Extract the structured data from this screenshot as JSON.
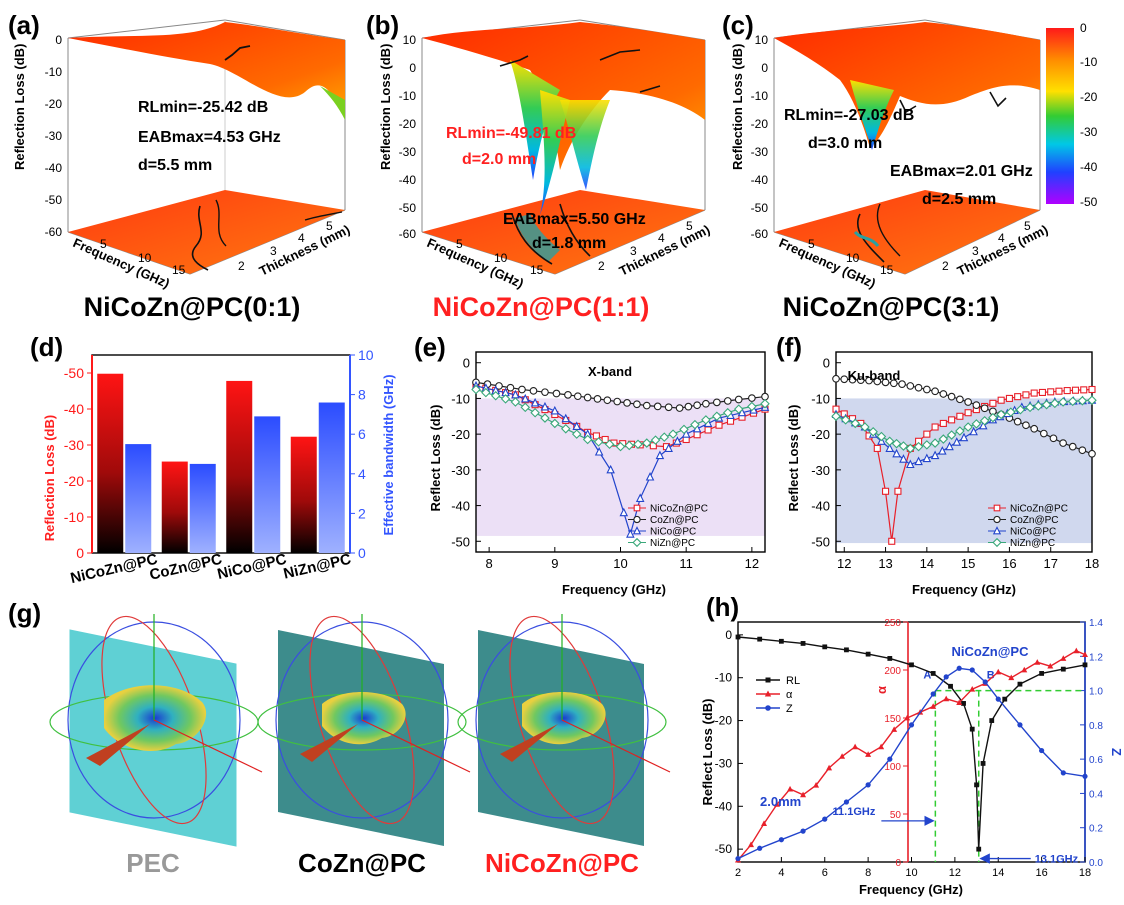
{
  "panel_letters": [
    "(a)",
    "(b)",
    "(c)",
    "(d)",
    "(e)",
    "(f)",
    "(g)",
    "(h)"
  ],
  "colorbar": {
    "ticks": [
      "0",
      "-10",
      "-20",
      "-30",
      "-40",
      "-50"
    ]
  },
  "surfaces": [
    {
      "caption": "NiCoZn@PC(0:1)",
      "caption_color": "#000000",
      "zlabel": "Reflection Loss (dB)",
      "xlabel": "Frequency (GHz)",
      "ylabel": "Thickness (mm)",
      "zticks": [
        "0",
        "-10",
        "-20",
        "-30",
        "-40",
        "-50",
        "-60"
      ],
      "xticks": [
        "5",
        "10",
        "15"
      ],
      "yticks": [
        "2",
        "3",
        "4",
        "5"
      ],
      "ann": [
        {
          "text": "RLmin=-25.42 dB",
          "color": "#000000"
        },
        {
          "text": "EABmax=4.53 GHz",
          "color": "#000000"
        },
        {
          "text": "d=5.5 mm",
          "color": "#000000"
        }
      ]
    },
    {
      "caption": "NiCoZn@PC(1:1)",
      "caption_color": "#ff2020",
      "zlabel": "Reflection Loss (dB)",
      "xlabel": "Frequency (GHz)",
      "ylabel": "Thickness (mm)",
      "zticks": [
        "10",
        "0",
        "-10",
        "-20",
        "-30",
        "-40",
        "-50",
        "-60"
      ],
      "xticks": [
        "5",
        "10",
        "15"
      ],
      "yticks": [
        "2",
        "3",
        "4",
        "5"
      ],
      "ann": [
        {
          "text": "RLmin=-49.81 dB",
          "color": "#ff2020"
        },
        {
          "text": "d=2.0 mm",
          "color": "#ff2020"
        },
        {
          "text": "EABmax=5.50 GHz",
          "color": "#000000"
        },
        {
          "text": "d=1.8 mm",
          "color": "#000000"
        }
      ]
    },
    {
      "caption": "NiCoZn@PC(3:1)",
      "caption_color": "#000000",
      "zlabel": "Reflection Loss (dB)",
      "xlabel": "Frequency (GHz)",
      "ylabel": "Thickness (mm)",
      "zticks": [
        "10",
        "0",
        "-10",
        "-20",
        "-30",
        "-40",
        "-50",
        "-60"
      ],
      "xticks": [
        "5",
        "10",
        "15"
      ],
      "yticks": [
        "2",
        "3",
        "4",
        "5"
      ],
      "ann": [
        {
          "text": "RLmin=-27.03 dB",
          "color": "#000000"
        },
        {
          "text": "d=3.0 mm",
          "color": "#000000"
        },
        {
          "text": "EABmax=2.01 GHz",
          "color": "#000000"
        },
        {
          "text": "d=2.5 mm",
          "color": "#000000"
        }
      ]
    }
  ],
  "g_panel": {
    "labels": [
      {
        "text": "PEC",
        "color": "#999999"
      },
      {
        "text": "CoZn@PC",
        "color": "#000000"
      },
      {
        "text": "NiCoZn@PC",
        "color": "#ff2020"
      }
    ]
  },
  "chart_data": [
    {
      "id": "d",
      "type": "bar",
      "categories": [
        "NiCoZn@PC",
        "CoZn@PC",
        "NiCo@PC",
        "NiZn@PC"
      ],
      "series": [
        {
          "name": "Reflection Loss (dB)",
          "values": [
            -49.8,
            -25.4,
            -47.8,
            -32.3
          ],
          "color": "#ff1a1a"
        },
        {
          "name": "Effective bandwidth (GHz)",
          "values": [
            5.5,
            4.5,
            6.9,
            7.6
          ],
          "color": "#3355ff"
        }
      ],
      "ylabel": "Reflection Loss (dB)",
      "y2label": "Effective bandwidth (GHz)",
      "ylim": [
        0,
        -55
      ],
      "y2lim": [
        0,
        10
      ],
      "yticks": [
        "-50",
        "-40",
        "-30",
        "-20",
        "-10",
        "0"
      ],
      "y2ticks": [
        "0",
        "2",
        "4",
        "6",
        "8",
        "10"
      ]
    },
    {
      "id": "e",
      "type": "line",
      "title": "X-band",
      "xlabel": "Frequency (GHz)",
      "ylabel": "Reflect Loss (dB)",
      "xlim": [
        7.8,
        12.2
      ],
      "ylim": [
        -53,
        3
      ],
      "xticks": [
        "8",
        "9",
        "10",
        "11",
        "12"
      ],
      "yticks": [
        "0",
        "-10",
        "-20",
        "-30",
        "-40",
        "-50"
      ],
      "band": [
        -48.5,
        -10
      ],
      "series": [
        {
          "name": "NiCoZn@PC",
          "color": "#e8202a",
          "marker": "square",
          "points": [
            [
              7.8,
              -6.5
            ],
            [
              8.4,
              -9
            ],
            [
              9,
              -14.5
            ],
            [
              9.5,
              -19.5
            ],
            [
              9.9,
              -22.5
            ],
            [
              10.3,
              -23
            ],
            [
              10.7,
              -23.5
            ],
            [
              11,
              -21.5
            ],
            [
              11.5,
              -17.5
            ],
            [
              12.2,
              -13
            ]
          ]
        },
        {
          "name": "CoZn@PC",
          "color": "#222222",
          "marker": "circle",
          "points": [
            [
              7.8,
              -5.5
            ],
            [
              8.5,
              -7.5
            ],
            [
              9.2,
              -9
            ],
            [
              9.8,
              -10.5
            ],
            [
              10.4,
              -12
            ],
            [
              10.9,
              -12.7
            ],
            [
              11.3,
              -11.5
            ],
            [
              11.8,
              -10.3
            ],
            [
              12.2,
              -9.5
            ]
          ]
        },
        {
          "name": "NiCo@PC",
          "color": "#2244cc",
          "marker": "triangle",
          "points": [
            [
              7.8,
              -6.5
            ],
            [
              8.4,
              -9
            ],
            [
              9,
              -13.5
            ],
            [
              9.5,
              -20
            ],
            [
              9.85,
              -30
            ],
            [
              10.05,
              -42
            ],
            [
              10.15,
              -48
            ],
            [
              10.3,
              -38
            ],
            [
              10.6,
              -26
            ],
            [
              11,
              -20
            ],
            [
              11.5,
              -15.5
            ],
            [
              12.2,
              -12.5
            ]
          ]
        },
        {
          "name": "NiZn@PC",
          "color": "#3aa87a",
          "marker": "diamond",
          "points": [
            [
              7.8,
              -7.5
            ],
            [
              8.4,
              -11
            ],
            [
              9,
              -17
            ],
            [
              9.5,
              -21.5
            ],
            [
              10,
              -23.5
            ],
            [
              10.4,
              -22.5
            ],
            [
              10.8,
              -20
            ],
            [
              11.3,
              -16
            ],
            [
              11.8,
              -13
            ],
            [
              12.2,
              -11.5
            ]
          ]
        }
      ]
    },
    {
      "id": "f",
      "type": "line",
      "title": "Ku-band",
      "xlabel": "Frequency (GHz)",
      "ylabel": "Reflect Loss (dB)",
      "xlim": [
        11.8,
        18
      ],
      "ylim": [
        -53,
        3
      ],
      "xticks": [
        "12",
        "13",
        "14",
        "15",
        "16",
        "17",
        "18"
      ],
      "yticks": [
        "0",
        "-10",
        "-20",
        "-30",
        "-40",
        "-50"
      ],
      "band": [
        -50.5,
        -10
      ],
      "series": [
        {
          "name": "NiCoZn@PC",
          "color": "#e8202a",
          "marker": "square",
          "points": [
            [
              11.8,
              -13
            ],
            [
              12.4,
              -17
            ],
            [
              12.8,
              -24
            ],
            [
              13,
              -36
            ],
            [
              13.15,
              -50
            ],
            [
              13.3,
              -36
            ],
            [
              13.6,
              -24
            ],
            [
              14.2,
              -18
            ],
            [
              15,
              -14
            ],
            [
              15.8,
              -10.5
            ],
            [
              16.6,
              -8.5
            ],
            [
              17.4,
              -7.8
            ],
            [
              18,
              -7.5
            ]
          ]
        },
        {
          "name": "CoZn@PC",
          "color": "#222222",
          "marker": "circle",
          "points": [
            [
              11.8,
              -4.5
            ],
            [
              12.6,
              -5
            ],
            [
              13.4,
              -6
            ],
            [
              14.2,
              -8
            ],
            [
              15,
              -11
            ],
            [
              15.8,
              -14.5
            ],
            [
              16.6,
              -18.5
            ],
            [
              17.3,
              -22.5
            ],
            [
              18,
              -25.5
            ]
          ]
        },
        {
          "name": "NiCo@PC",
          "color": "#2244cc",
          "marker": "triangle",
          "points": [
            [
              11.8,
              -14.5
            ],
            [
              12.5,
              -18
            ],
            [
              13.1,
              -24
            ],
            [
              13.6,
              -28.5
            ],
            [
              14.2,
              -26
            ],
            [
              14.9,
              -21
            ],
            [
              15.6,
              -16
            ],
            [
              16.3,
              -12.5
            ],
            [
              17.1,
              -11
            ],
            [
              18,
              -10.5
            ]
          ]
        },
        {
          "name": "NiZn@PC",
          "color": "#3aa87a",
          "marker": "diamond",
          "points": [
            [
              11.8,
              -15
            ],
            [
              12.5,
              -18
            ],
            [
              13.1,
              -22
            ],
            [
              13.6,
              -24
            ],
            [
              14.2,
              -22.5
            ],
            [
              15,
              -18
            ],
            [
              15.8,
              -14.5
            ],
            [
              16.5,
              -12.5
            ],
            [
              17.3,
              -11
            ],
            [
              18,
              -10.5
            ]
          ]
        }
      ]
    },
    {
      "id": "h",
      "type": "line",
      "title": "NiCoZn@PC",
      "xlabel": "Frequency (GHz)",
      "ylabel": "Reflect Loss (dB)",
      "y2label": "α",
      "y3label": "Z",
      "xlim": [
        2,
        18
      ],
      "ylim": [
        -53,
        3
      ],
      "y2lim": [
        0,
        250
      ],
      "y3lim": [
        0,
        1.4
      ],
      "xticks": [
        "2",
        "4",
        "6",
        "8",
        "10",
        "12",
        "14",
        "16",
        "18"
      ],
      "yticks": [
        "0",
        "-10",
        "-20",
        "-30",
        "-40",
        "-50"
      ],
      "y2ticks": [
        "0",
        "50",
        "100",
        "150",
        "200",
        "250"
      ],
      "y3ticks": [
        "0.0",
        "0.2",
        "0.4",
        "0.6",
        "0.8",
        "1.0",
        "1.2",
        "1.4"
      ],
      "thickness": "2.0mm",
      "marks": [
        {
          "label": "A",
          "x": 11.1
        },
        {
          "label": "B",
          "x": 13.1
        }
      ],
      "arrows": [
        {
          "text": "11.1GHz",
          "x": 11.1
        },
        {
          "text": "13.1GHz",
          "x": 13.1
        }
      ],
      "series": [
        {
          "name": "RL",
          "color": "#111111",
          "marker": "square",
          "axis": "y",
          "points": [
            [
              2,
              -0.5
            ],
            [
              3,
              -1
            ],
            [
              4,
              -1.5
            ],
            [
              5,
              -2
            ],
            [
              6,
              -2.8
            ],
            [
              7,
              -3.5
            ],
            [
              8,
              -4.5
            ],
            [
              9,
              -5.5
            ],
            [
              10,
              -7
            ],
            [
              11,
              -9
            ],
            [
              11.8,
              -12
            ],
            [
              12.4,
              -16
            ],
            [
              12.8,
              -22
            ],
            [
              13,
              -35
            ],
            [
              13.1,
              -50
            ],
            [
              13.3,
              -30
            ],
            [
              13.7,
              -20
            ],
            [
              14.3,
              -15
            ],
            [
              15,
              -11.5
            ],
            [
              16,
              -9
            ],
            [
              17,
              -8
            ],
            [
              18,
              -7
            ]
          ]
        },
        {
          "name": "α",
          "color": "#e8202a",
          "marker": "triangle",
          "axis": "y2",
          "points": [
            [
              2,
              2
            ],
            [
              2.6,
              18
            ],
            [
              3.2,
              40
            ],
            [
              3.8,
              60
            ],
            [
              4.4,
              76
            ],
            [
              5,
              70
            ],
            [
              5.6,
              80
            ],
            [
              6.2,
              98
            ],
            [
              6.8,
              110
            ],
            [
              7.4,
              120
            ],
            [
              8,
              112
            ],
            [
              8.6,
              120
            ],
            [
              9.2,
              138
            ],
            [
              9.8,
              150
            ],
            [
              10.4,
              156
            ],
            [
              11,
              162
            ],
            [
              11.6,
              170
            ],
            [
              12.2,
              166
            ],
            [
              12.8,
              180
            ],
            [
              13.4,
              186
            ],
            [
              14,
              198
            ],
            [
              14.6,
              192
            ],
            [
              15.2,
              200
            ],
            [
              15.8,
              208
            ],
            [
              16.4,
              204
            ],
            [
              17,
              212
            ],
            [
              17.6,
              220
            ],
            [
              18,
              216
            ]
          ]
        },
        {
          "name": "Z",
          "color": "#2244cc",
          "marker": "circle",
          "axis": "y3",
          "points": [
            [
              2,
              0.02
            ],
            [
              3,
              0.08
            ],
            [
              4,
              0.13
            ],
            [
              5,
              0.18
            ],
            [
              6,
              0.25
            ],
            [
              7,
              0.35
            ],
            [
              8,
              0.45
            ],
            [
              9,
              0.6
            ],
            [
              10,
              0.8
            ],
            [
              11,
              0.98
            ],
            [
              11.6,
              1.08
            ],
            [
              12.2,
              1.13
            ],
            [
              12.8,
              1.12
            ],
            [
              13.4,
              1.05
            ],
            [
              14,
              0.95
            ],
            [
              15,
              0.8
            ],
            [
              16,
              0.65
            ],
            [
              17,
              0.52
            ],
            [
              18,
              0.5
            ]
          ]
        }
      ]
    }
  ]
}
